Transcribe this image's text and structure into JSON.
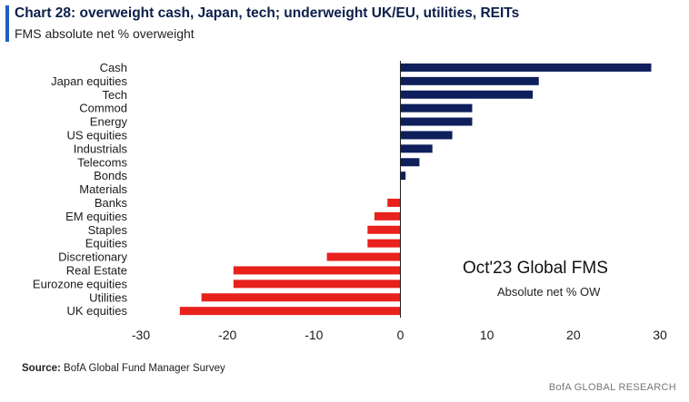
{
  "header": {
    "title": "Chart 28: overweight cash, Japan, tech; underweight UK/EU, utilities, REITs",
    "subtitle": "FMS absolute net % overweight",
    "accent_color": "#1f5fbf"
  },
  "annotation": {
    "title": "Oct'23 Global FMS",
    "subtitle": "Absolute net % OW"
  },
  "footer": {
    "source_label": "Source:",
    "source_text": "BofA Global Fund Manager Survey",
    "brand": "BofA GLOBAL RESEARCH"
  },
  "chart_data": {
    "type": "bar",
    "orientation": "horizontal",
    "categories": [
      "Cash",
      "Japan equities",
      "Tech",
      "Commod",
      "Energy",
      "US equities",
      "Industrials",
      "Telecoms",
      "Bonds",
      "Materials",
      "Banks",
      "EM equities",
      "Staples",
      "Equities",
      "Discretionary",
      "Real Estate",
      "Eurozone equities",
      "Utilities",
      "UK equities"
    ],
    "values": [
      29,
      16,
      15.3,
      8.3,
      8.3,
      6,
      3.7,
      2.2,
      0.6,
      0,
      -1.5,
      -3,
      -3.8,
      -3.8,
      -8.5,
      -19.3,
      -19.3,
      -23,
      -25.5
    ],
    "xlim": [
      -30,
      30
    ],
    "xticks": [
      -30,
      -20,
      -10,
      0,
      10,
      20,
      30
    ],
    "positive_color": "#0e1f5b",
    "negative_color": "#e8211c",
    "grid": false,
    "legend": "none"
  }
}
